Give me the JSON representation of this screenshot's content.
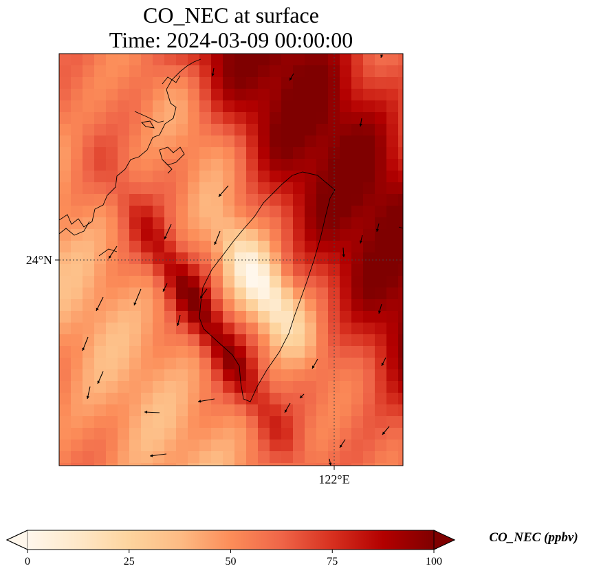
{
  "title_line1": "CO_NEC at surface",
  "title_line2": "Time: 2024-03-09 00:00:00",
  "chart_data": {
    "type": "heatmap",
    "title": "CO_NEC at surface",
    "subtitle": "Time: 2024-03-09 00:00:00",
    "variable": "CO_NEC",
    "x_ticks": [
      {
        "value": 122,
        "label": "122°E"
      }
    ],
    "y_ticks": [
      {
        "value": 24,
        "label": "24°N"
      }
    ],
    "colorbar": {
      "label": "CO_NEC (ppbv)",
      "colormap": "OrRd",
      "range": [
        0,
        100
      ],
      "ticks": [
        0,
        25,
        50,
        75,
        100
      ],
      "extend": "both",
      "colors": [
        "#fff7ec",
        "#fee8c8",
        "#fdd49e",
        "#fdbb84",
        "#fc8d59",
        "#ef6548",
        "#d7301f",
        "#b30000",
        "#7f0000"
      ]
    },
    "grid": "dotted at 122°E and 24°N",
    "overlays": [
      "coastlines",
      "wind vectors"
    ]
  }
}
